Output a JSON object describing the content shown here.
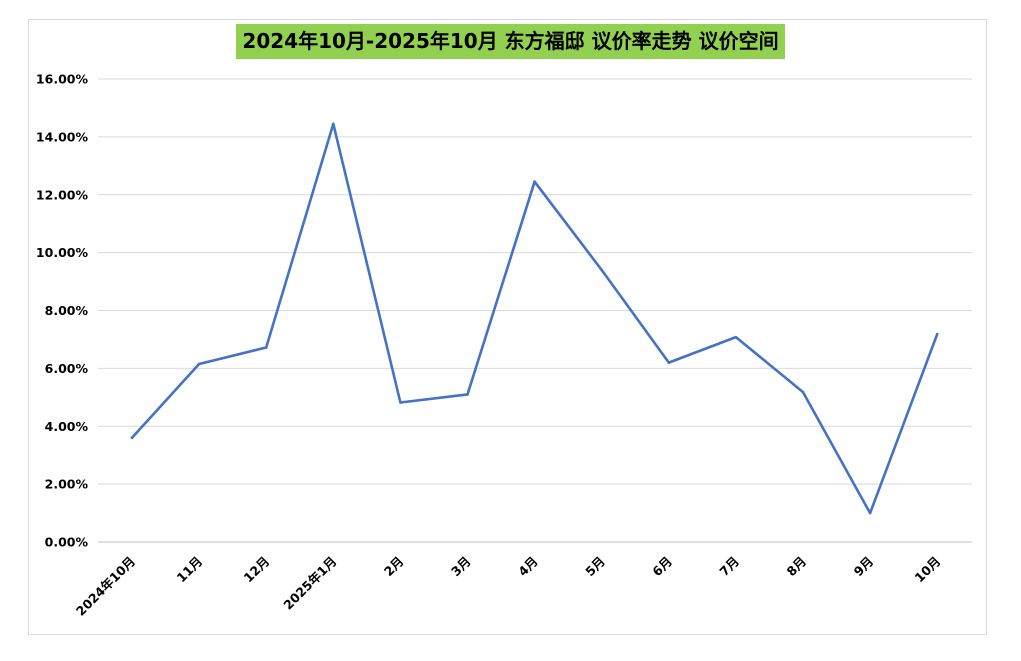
{
  "chart_data": {
    "type": "line",
    "title": "2024年10月-2025年10月 东方福邸 议价率走势 议价空间",
    "categories": [
      "2024年10月",
      "11月",
      "12月",
      "2025年1月",
      "2月",
      "3月",
      "4月",
      "5月",
      "6月",
      "7月",
      "8月",
      "9月",
      "10月"
    ],
    "series": [
      {
        "values": [
          3.6,
          6.15,
          6.72,
          14.45,
          4.82,
          5.1,
          12.45,
          9.4,
          6.2,
          7.08,
          5.18,
          1.0,
          7.18
        ],
        "color": "#4472c4"
      }
    ],
    "y_ticks": [
      "0.00%",
      "2.00%",
      "4.00%",
      "6.00%",
      "8.00%",
      "10.00%",
      "12.00%",
      "14.00%",
      "16.00%"
    ],
    "ylim": [
      0,
      16
    ],
    "grid": true,
    "legend": "none",
    "title_background": "#92d050"
  }
}
